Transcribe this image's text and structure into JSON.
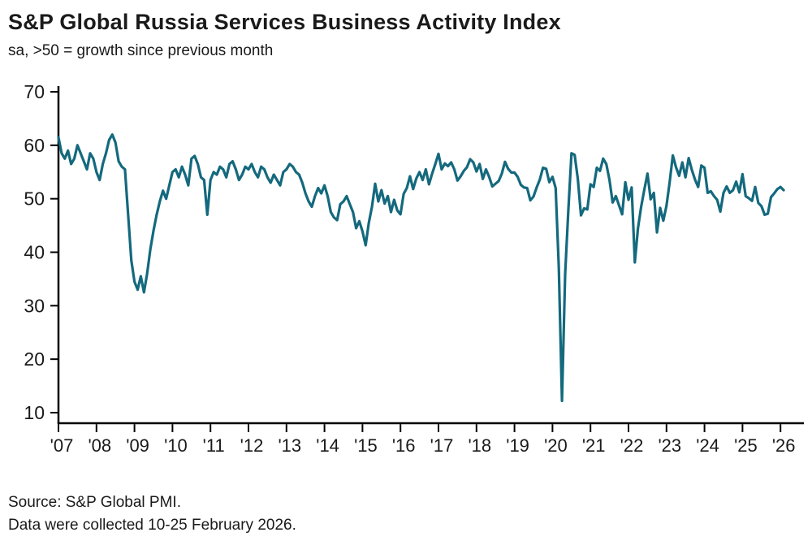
{
  "header": {
    "title": "S&P Global Russia Services Business Activity Index",
    "subtitle": "sa, >50 = growth since previous month"
  },
  "footer": {
    "source_line1": "Source: S&P Global PMI.",
    "source_line2": "Data were collected 10-25 February 2026."
  },
  "chart_data": {
    "type": "line",
    "title": "S&P Global Russia Services Business Activity Index",
    "subtitle": "sa, >50 = growth since previous month",
    "series_name": "Russia Services Business Activity Index (sa)",
    "frequency": "monthly",
    "x_start": "2007-01",
    "x_end": "2026-02",
    "ylim": [
      10,
      70
    ],
    "y_ticks": [
      10,
      20,
      30,
      40,
      50,
      60,
      70
    ],
    "x_tick_labels": [
      "'07",
      "'08",
      "'09",
      "'10",
      "'11",
      "'12",
      "'13",
      "'14",
      "'15",
      "'16",
      "'17",
      "'18",
      "'19",
      "'20",
      "'21",
      "'22",
      "'23",
      "'24",
      "'25",
      "'26"
    ],
    "line_color": "#14697d",
    "axis_color": "#000000",
    "text_color": "#1a1a1a",
    "grid": false,
    "legend": "none",
    "values": [
      61.5,
      58.5,
      57.5,
      59.0,
      56.5,
      57.5,
      60.0,
      58.5,
      57.0,
      55.5,
      58.5,
      57.5,
      55.0,
      53.5,
      56.5,
      58.5,
      61.0,
      62.0,
      60.5,
      57.0,
      56.0,
      55.5,
      47.0,
      38.5,
      34.5,
      33.0,
      35.5,
      32.5,
      36.0,
      40.5,
      44.0,
      47.0,
      49.5,
      51.5,
      50.0,
      52.5,
      55.0,
      55.5,
      54.0,
      56.0,
      54.5,
      52.5,
      57.5,
      58.0,
      56.5,
      54.0,
      53.5,
      47.0,
      53.5,
      55.0,
      54.5,
      56.0,
      55.5,
      54.0,
      56.5,
      57.0,
      55.5,
      53.5,
      54.5,
      56.0,
      55.5,
      56.5,
      55.0,
      54.0,
      56.0,
      55.5,
      54.0,
      53.0,
      54.5,
      53.5,
      52.5,
      55.0,
      55.5,
      56.5,
      56.0,
      55.0,
      54.5,
      53.0,
      51.0,
      49.5,
      48.5,
      50.5,
      52.0,
      51.0,
      52.5,
      50.5,
      47.5,
      46.5,
      46.0,
      49.0,
      49.5,
      50.5,
      49.0,
      47.5,
      44.5,
      45.8,
      43.9,
      41.3,
      45.5,
      48.5,
      52.8,
      49.5,
      51.6,
      49.1,
      50.5,
      47.5,
      49.8,
      47.8,
      47.1,
      50.9,
      52.0,
      54.2,
      51.8,
      53.8,
      55.0,
      53.5,
      55.5,
      52.7,
      54.7,
      56.5,
      58.4,
      55.5,
      56.6,
      56.1,
      56.8,
      55.5,
      53.4,
      54.2,
      55.2,
      55.9,
      57.4,
      56.8,
      55.1,
      56.5,
      53.7,
      55.5,
      54.1,
      52.3,
      52.8,
      53.3,
      54.7,
      56.9,
      55.6,
      54.9,
      54.9,
      54.1,
      52.6,
      52.1,
      52.0,
      49.7,
      50.4,
      52.1,
      53.6,
      55.8,
      55.6,
      53.1,
      54.1,
      52.0,
      37.1,
      12.2,
      35.9,
      47.8,
      58.5,
      58.2,
      53.7,
      46.9,
      48.2,
      48.0,
      52.7,
      52.2,
      55.8,
      55.2,
      57.5,
      56.5,
      53.5,
      49.3,
      50.5,
      48.8,
      47.1,
      53.1,
      49.8,
      52.1,
      38.1,
      44.5,
      48.5,
      51.7,
      54.7,
      49.9,
      51.1,
      43.7,
      48.3,
      45.9,
      48.7,
      53.1,
      58.1,
      55.9,
      54.3,
      56.8,
      54.0,
      57.6,
      55.4,
      53.6,
      52.2,
      56.2,
      55.8,
      51.1,
      51.4,
      50.5,
      49.8,
      47.6,
      51.1,
      52.3,
      51.1,
      51.6,
      53.2,
      51.2,
      54.6,
      50.5,
      50.1,
      49.6,
      52.2,
      49.2,
      48.6,
      47.0,
      47.2,
      50.3,
      51.0,
      51.8,
      52.2,
      51.6
    ]
  }
}
